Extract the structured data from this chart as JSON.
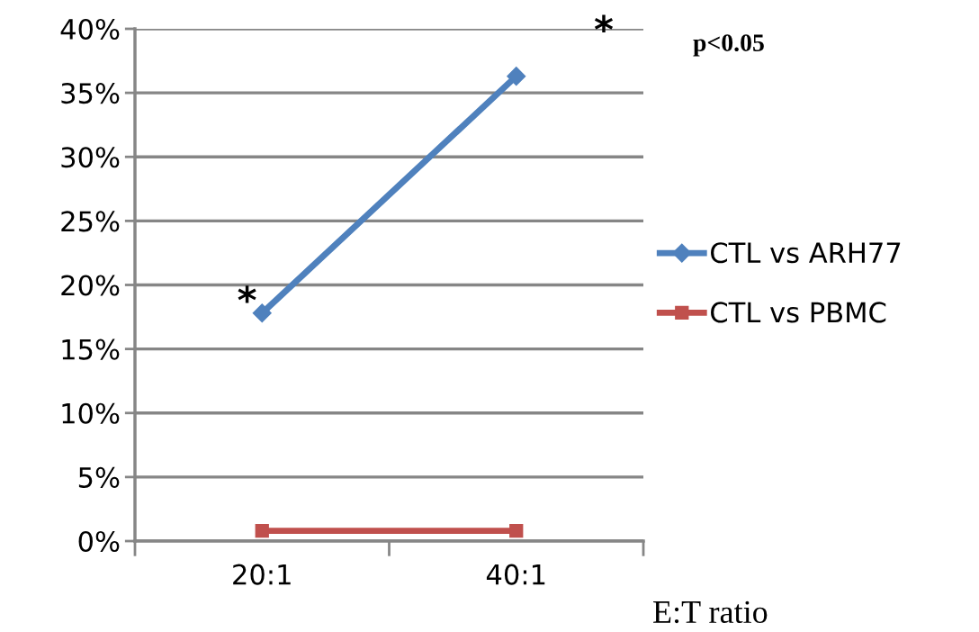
{
  "chart_data": {
    "type": "line",
    "xlabel": "E:T ratio",
    "categories": [
      "20:1",
      "40:1"
    ],
    "series": [
      {
        "name": "CTL vs ARH77",
        "color": "#4f81bd",
        "values": [
          17.8,
          36.3
        ],
        "marker": "diamond"
      },
      {
        "name": "CTL vs PBMC",
        "color": "#c0504d",
        "values": [
          0.8,
          0.8
        ],
        "marker": "square"
      }
    ],
    "ylim": [
      0,
      40
    ],
    "yticks": [
      {
        "value": 0,
        "label": "0%"
      },
      {
        "value": 5,
        "label": "5%"
      },
      {
        "value": 10,
        "label": "10%"
      },
      {
        "value": 15,
        "label": "15%"
      },
      {
        "value": 20,
        "label": "20%"
      },
      {
        "value": 25,
        "label": "25%"
      },
      {
        "value": 30,
        "label": "30%"
      },
      {
        "value": 35,
        "label": "35%"
      },
      {
        "value": 40,
        "label": "40%"
      }
    ],
    "grid": "y",
    "legend": "right",
    "annotations": [
      {
        "text": "*",
        "x": "20:1",
        "y": 17.8
      },
      {
        "text": "*",
        "x": "40:1",
        "y": 36.3
      },
      "p<0.05"
    ]
  }
}
